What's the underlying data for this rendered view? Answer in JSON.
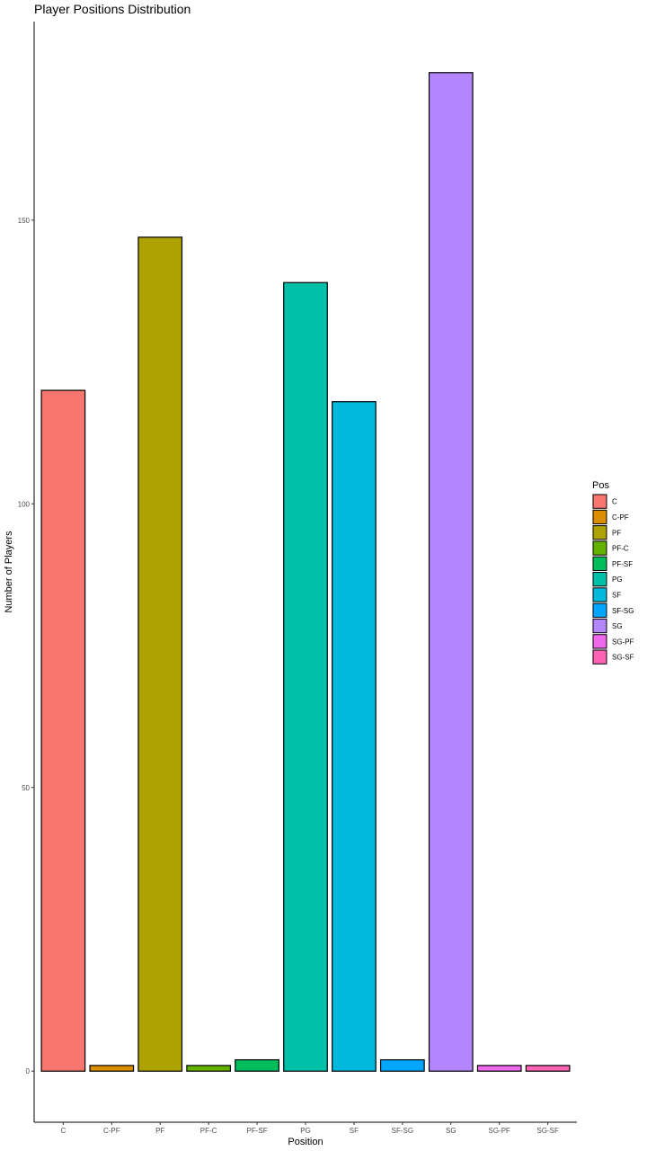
{
  "chart_data": {
    "type": "bar",
    "title": "Player Positions Distribution",
    "xlabel": "Position",
    "ylabel": "Number of Players",
    "categories": [
      "C",
      "C-PF",
      "PF",
      "PF-C",
      "PF-SF",
      "PG",
      "SF",
      "SF-SG",
      "SG",
      "SG-PF",
      "SG-SF"
    ],
    "values": [
      120,
      1,
      147,
      1,
      2,
      139,
      118,
      2,
      176,
      1,
      1
    ],
    "colors": [
      "#F8766D",
      "#DB8E00",
      "#AEA200",
      "#64B200",
      "#00BD5C",
      "#00C1A7",
      "#00BADE",
      "#00A6FF",
      "#B385FF",
      "#EF67EB",
      "#FF63B6"
    ],
    "yticks": [
      0,
      50,
      100,
      150
    ],
    "ylim": [
      -9,
      185
    ],
    "grid": false,
    "legend": {
      "title": "Pos",
      "position": "right"
    }
  }
}
